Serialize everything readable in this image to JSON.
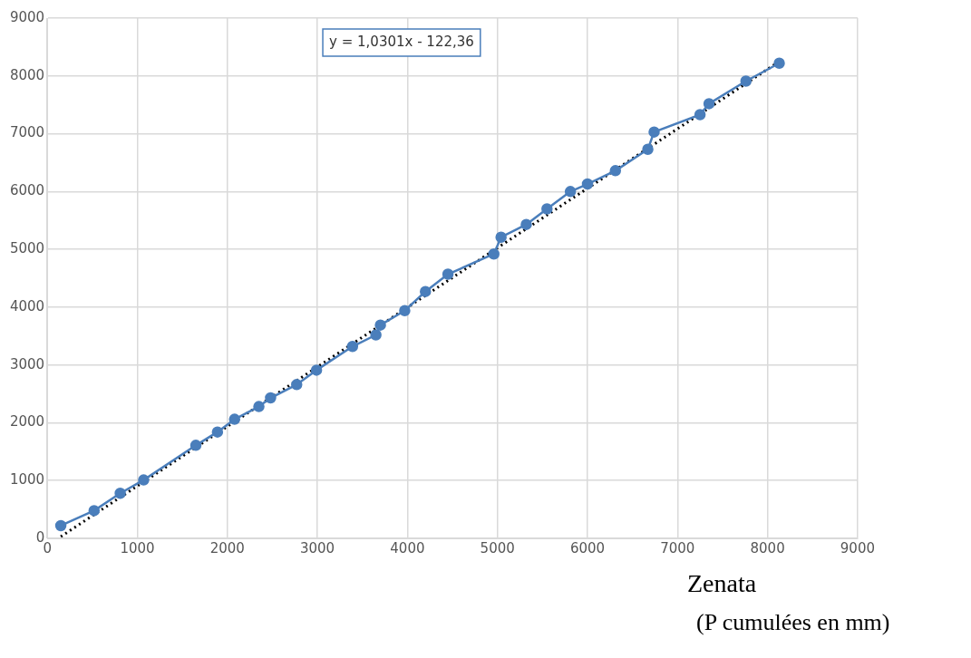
{
  "chart_data": {
    "type": "scatter",
    "title": "Zenata",
    "xlabel": "(P cumulées en mm)",
    "annotations": [
      "y = 1,0301x - 122,36"
    ],
    "xlim": [
      0,
      9000
    ],
    "xticks": [
      0,
      1000,
      2000,
      3000,
      4000,
      5000,
      6000,
      7000,
      8000,
      9000
    ],
    "ylim": [
      0,
      9000
    ],
    "yticks": [
      0,
      1000,
      2000,
      3000,
      4000,
      5000,
      6000,
      7000,
      8000,
      9000
    ],
    "grid": true,
    "legend": false,
    "marker": "circle",
    "series": [
      {
        "type": "line",
        "color": "#4a7ebb",
        "line_style": "solid",
        "x": [
          150,
          520,
          810,
          1070,
          1650,
          1890,
          2080,
          2350,
          2480,
          2770,
          2990,
          3390,
          3650,
          3700,
          3970,
          4200,
          4450,
          4960,
          5040,
          5320,
          5550,
          5810,
          6000,
          6310,
          6670,
          6740,
          7250,
          7350,
          7760,
          8130
        ],
        "values": [
          220,
          480,
          780,
          1010,
          1610,
          1840,
          2060,
          2280,
          2430,
          2660,
          2910,
          3320,
          3520,
          3690,
          3940,
          4270,
          4570,
          4920,
          5210,
          5430,
          5700,
          6000,
          6130,
          6360,
          6730,
          7030,
          7330,
          7520,
          7910,
          8220
        ]
      },
      {
        "type": "line",
        "color": "#000000",
        "marker": "none",
        "line_style": "dotted",
        "x": [
          150,
          8130
        ],
        "values": [
          30,
          8250
        ]
      }
    ]
  }
}
